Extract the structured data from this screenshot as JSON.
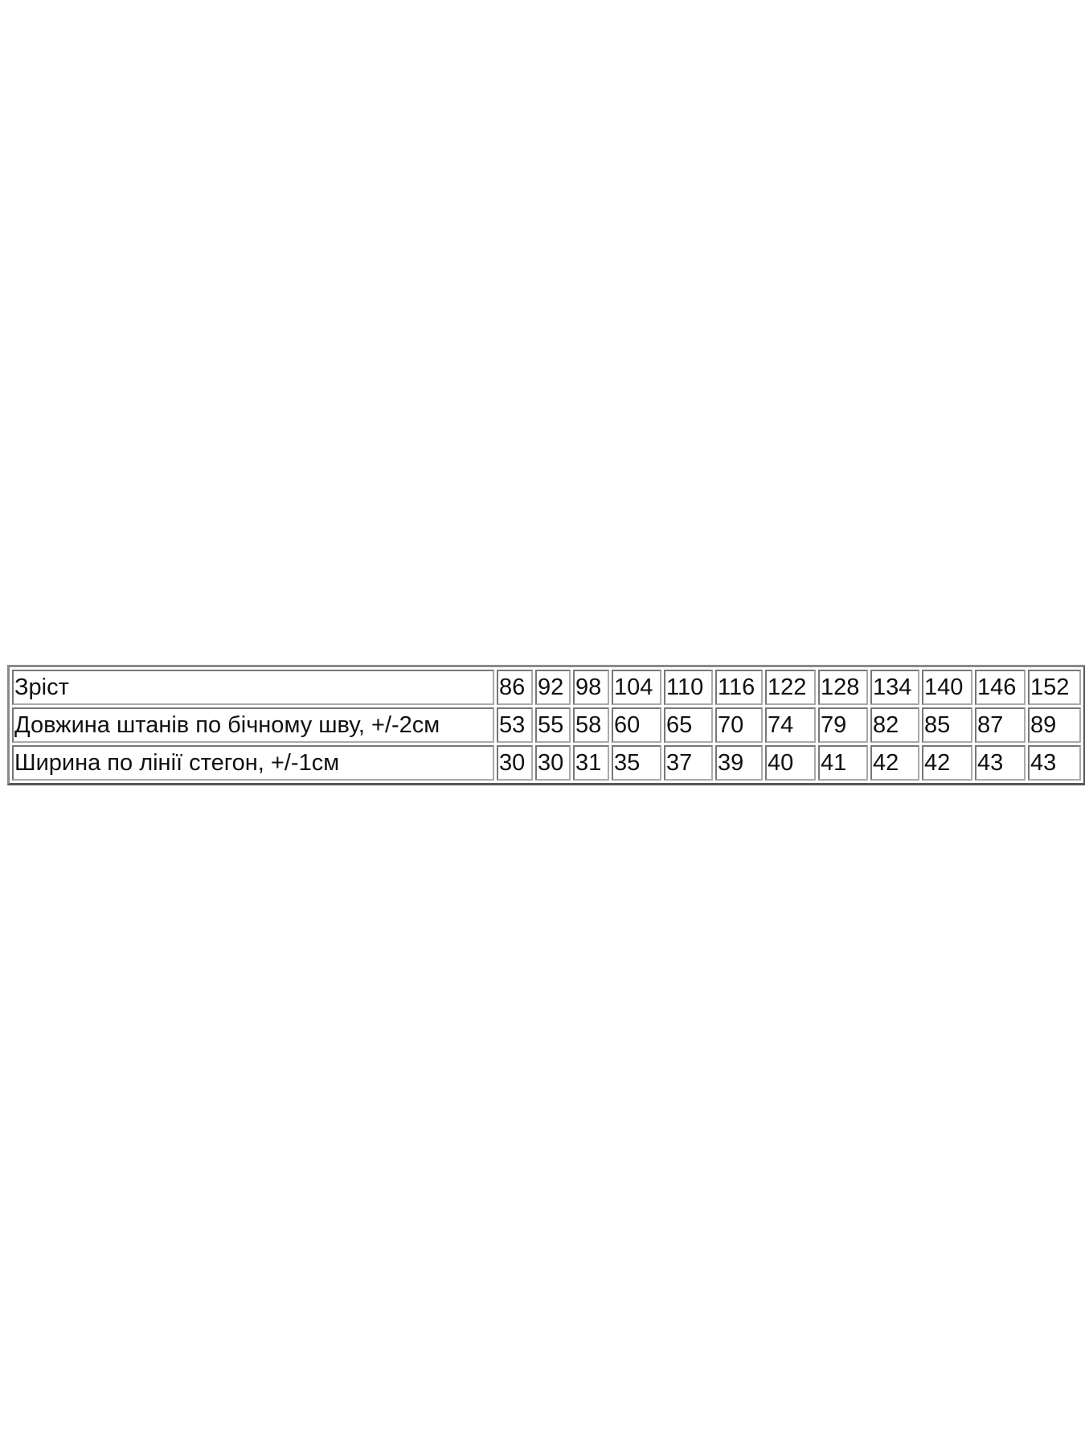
{
  "size_table": {
    "rows": [
      {
        "label": "Зріст",
        "values": [
          "86",
          "92",
          "98",
          "104",
          "110",
          "116",
          "122",
          "128",
          "134",
          "140",
          "146",
          "152"
        ]
      },
      {
        "label": "Довжина штанів по бічному шву, +/-2см",
        "values": [
          "53",
          "55",
          "58",
          "60",
          "65",
          "70",
          "74",
          "79",
          "82",
          "85",
          "87",
          "89"
        ]
      },
      {
        "label": "Ширина по лінії стегон, +/-1см",
        "values": [
          "30",
          "30",
          "31",
          "35",
          "37",
          "39",
          "40",
          "41",
          "42",
          "42",
          "43",
          "43"
        ]
      }
    ]
  }
}
